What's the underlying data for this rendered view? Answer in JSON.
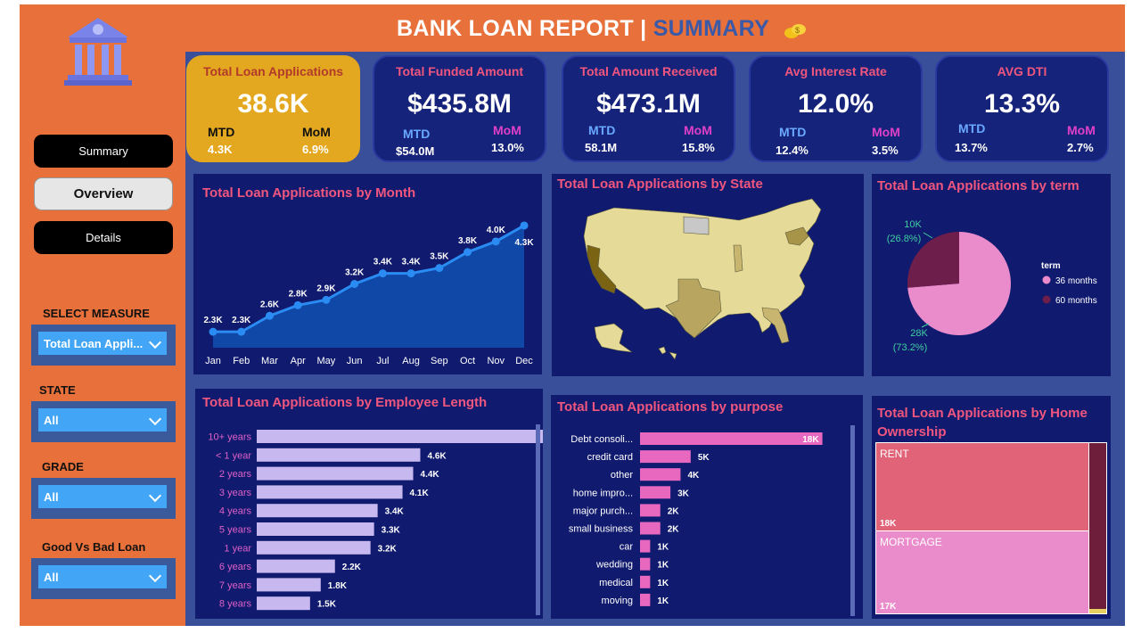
{
  "header": {
    "title_main": "BANK LOAN REPORT | ",
    "title_accent": "SUMMARY"
  },
  "nav": {
    "summary": "Summary",
    "overview": "Overview",
    "details": "Details"
  },
  "filters": {
    "measure_label": "SELECT MEASURE",
    "measure_value": "Total Loan Appli...",
    "state_label": "STATE",
    "state_value": "All",
    "grade_label": "GRADE",
    "grade_value": "All",
    "good_bad_label": "Good Vs Bad Loan",
    "good_bad_value": "All"
  },
  "kpis": [
    {
      "title": "Total Loan Applications",
      "value": "38.6K",
      "mtd_label": "MTD",
      "mom_label": "MoM",
      "mtd": "4.3K",
      "mom": "6.9%"
    },
    {
      "title": "Total Funded Amount",
      "value": "$435.8M",
      "mtd_label": "MTD",
      "mom_label": "MoM",
      "mtd": "$54.0M",
      "mom": "13.0%"
    },
    {
      "title": "Total Amount Received",
      "value": "$473.1M",
      "mtd_label": "MTD",
      "mom_label": "MoM",
      "mtd": "58.1M",
      "mom": "15.8%"
    },
    {
      "title": "Avg Interest Rate",
      "value": "12.0%",
      "mtd_label": "MTD",
      "mom_label": "MoM",
      "mtd": "12.4%",
      "mom": "3.5%"
    },
    {
      "title": "AVG DTI",
      "value": "13.3%",
      "mtd_label": "MTD",
      "mom_label": "MoM",
      "mtd": "13.7%",
      "mom": "2.7%"
    }
  ],
  "panels": {
    "month": "Total Loan Applications by Month",
    "state": "Total Loan Applications by State",
    "term": "Total Loan Applications by term",
    "emp": "Total Loan Applications by Employee Length",
    "purpose": "Total Loan Applications by purpose",
    "home": "Total Loan Applications by Home Ownership"
  },
  "chart_data": [
    {
      "type": "area",
      "title": "Total Loan Applications by Month",
      "categories": [
        "Jan",
        "Feb",
        "Mar",
        "Apr",
        "May",
        "Jun",
        "Jul",
        "Aug",
        "Sep",
        "Oct",
        "Nov",
        "Dec"
      ],
      "values": [
        2.3,
        2.3,
        2.6,
        2.8,
        2.9,
        3.2,
        3.4,
        3.4,
        3.5,
        3.8,
        4.0,
        4.3
      ],
      "labels": [
        "2.3K",
        "2.3K",
        "2.6K",
        "2.8K",
        "2.9K",
        "3.2K",
        "3.4K",
        "3.4K",
        "3.5K",
        "3.8K",
        "4.0K",
        "4.3K"
      ],
      "ylim": [
        2.0,
        4.4
      ]
    },
    {
      "type": "pie",
      "title": "Total Loan Applications by term",
      "legend_title": "term",
      "slices": [
        {
          "name": "36 months",
          "value": 28,
          "label": "28K",
          "pct": "(73.2%)",
          "color": "#ea8ccb"
        },
        {
          "name": "60 months",
          "value": 10,
          "label": "10K",
          "pct": "(26.8%)",
          "color": "#6e1e4a"
        }
      ]
    },
    {
      "type": "bar",
      "title": "Total Loan Applications by Employee Length",
      "categories": [
        "10+ years",
        "< 1 year",
        "2 years",
        "3 years",
        "4 years",
        "5 years",
        "1 year",
        "6 years",
        "7 years",
        "8 years"
      ],
      "values": [
        8.9,
        4.6,
        4.4,
        4.1,
        3.4,
        3.3,
        3.2,
        2.2,
        1.8,
        1.5
      ],
      "labels": [
        "8.9K",
        "4.6K",
        "4.4K",
        "4.1K",
        "3.4K",
        "3.3K",
        "3.2K",
        "2.2K",
        "1.8K",
        "1.5K"
      ],
      "xlim": [
        0,
        9.1
      ]
    },
    {
      "type": "bar",
      "title": "Total Loan Applications by purpose",
      "categories": [
        "Debt consoli...",
        "credit card",
        "other",
        "home impro...",
        "major purch...",
        "small business",
        "car",
        "wedding",
        "medical",
        "moving"
      ],
      "values": [
        18,
        5,
        4,
        3,
        2,
        2,
        1,
        1,
        1,
        1
      ],
      "labels": [
        "18K",
        "5K",
        "4K",
        "3K",
        "2K",
        "2K",
        "1K",
        "1K",
        "1K",
        "1K"
      ],
      "xlim": [
        0,
        18.3
      ]
    },
    {
      "type": "treemap",
      "title": "Total Loan Applications by Home Ownership",
      "items": [
        {
          "name": "RENT",
          "value": 18,
          "label": "18K",
          "color": "#e06378"
        },
        {
          "name": "MORTGAGE",
          "value": 17,
          "label": "17K",
          "color": "#ea8ccb"
        },
        {
          "name": "",
          "value": 3,
          "label": "",
          "color": "#6e1e3a"
        },
        {
          "name": "",
          "value": 0.1,
          "label": "",
          "color": "#e8d060"
        }
      ]
    }
  ]
}
